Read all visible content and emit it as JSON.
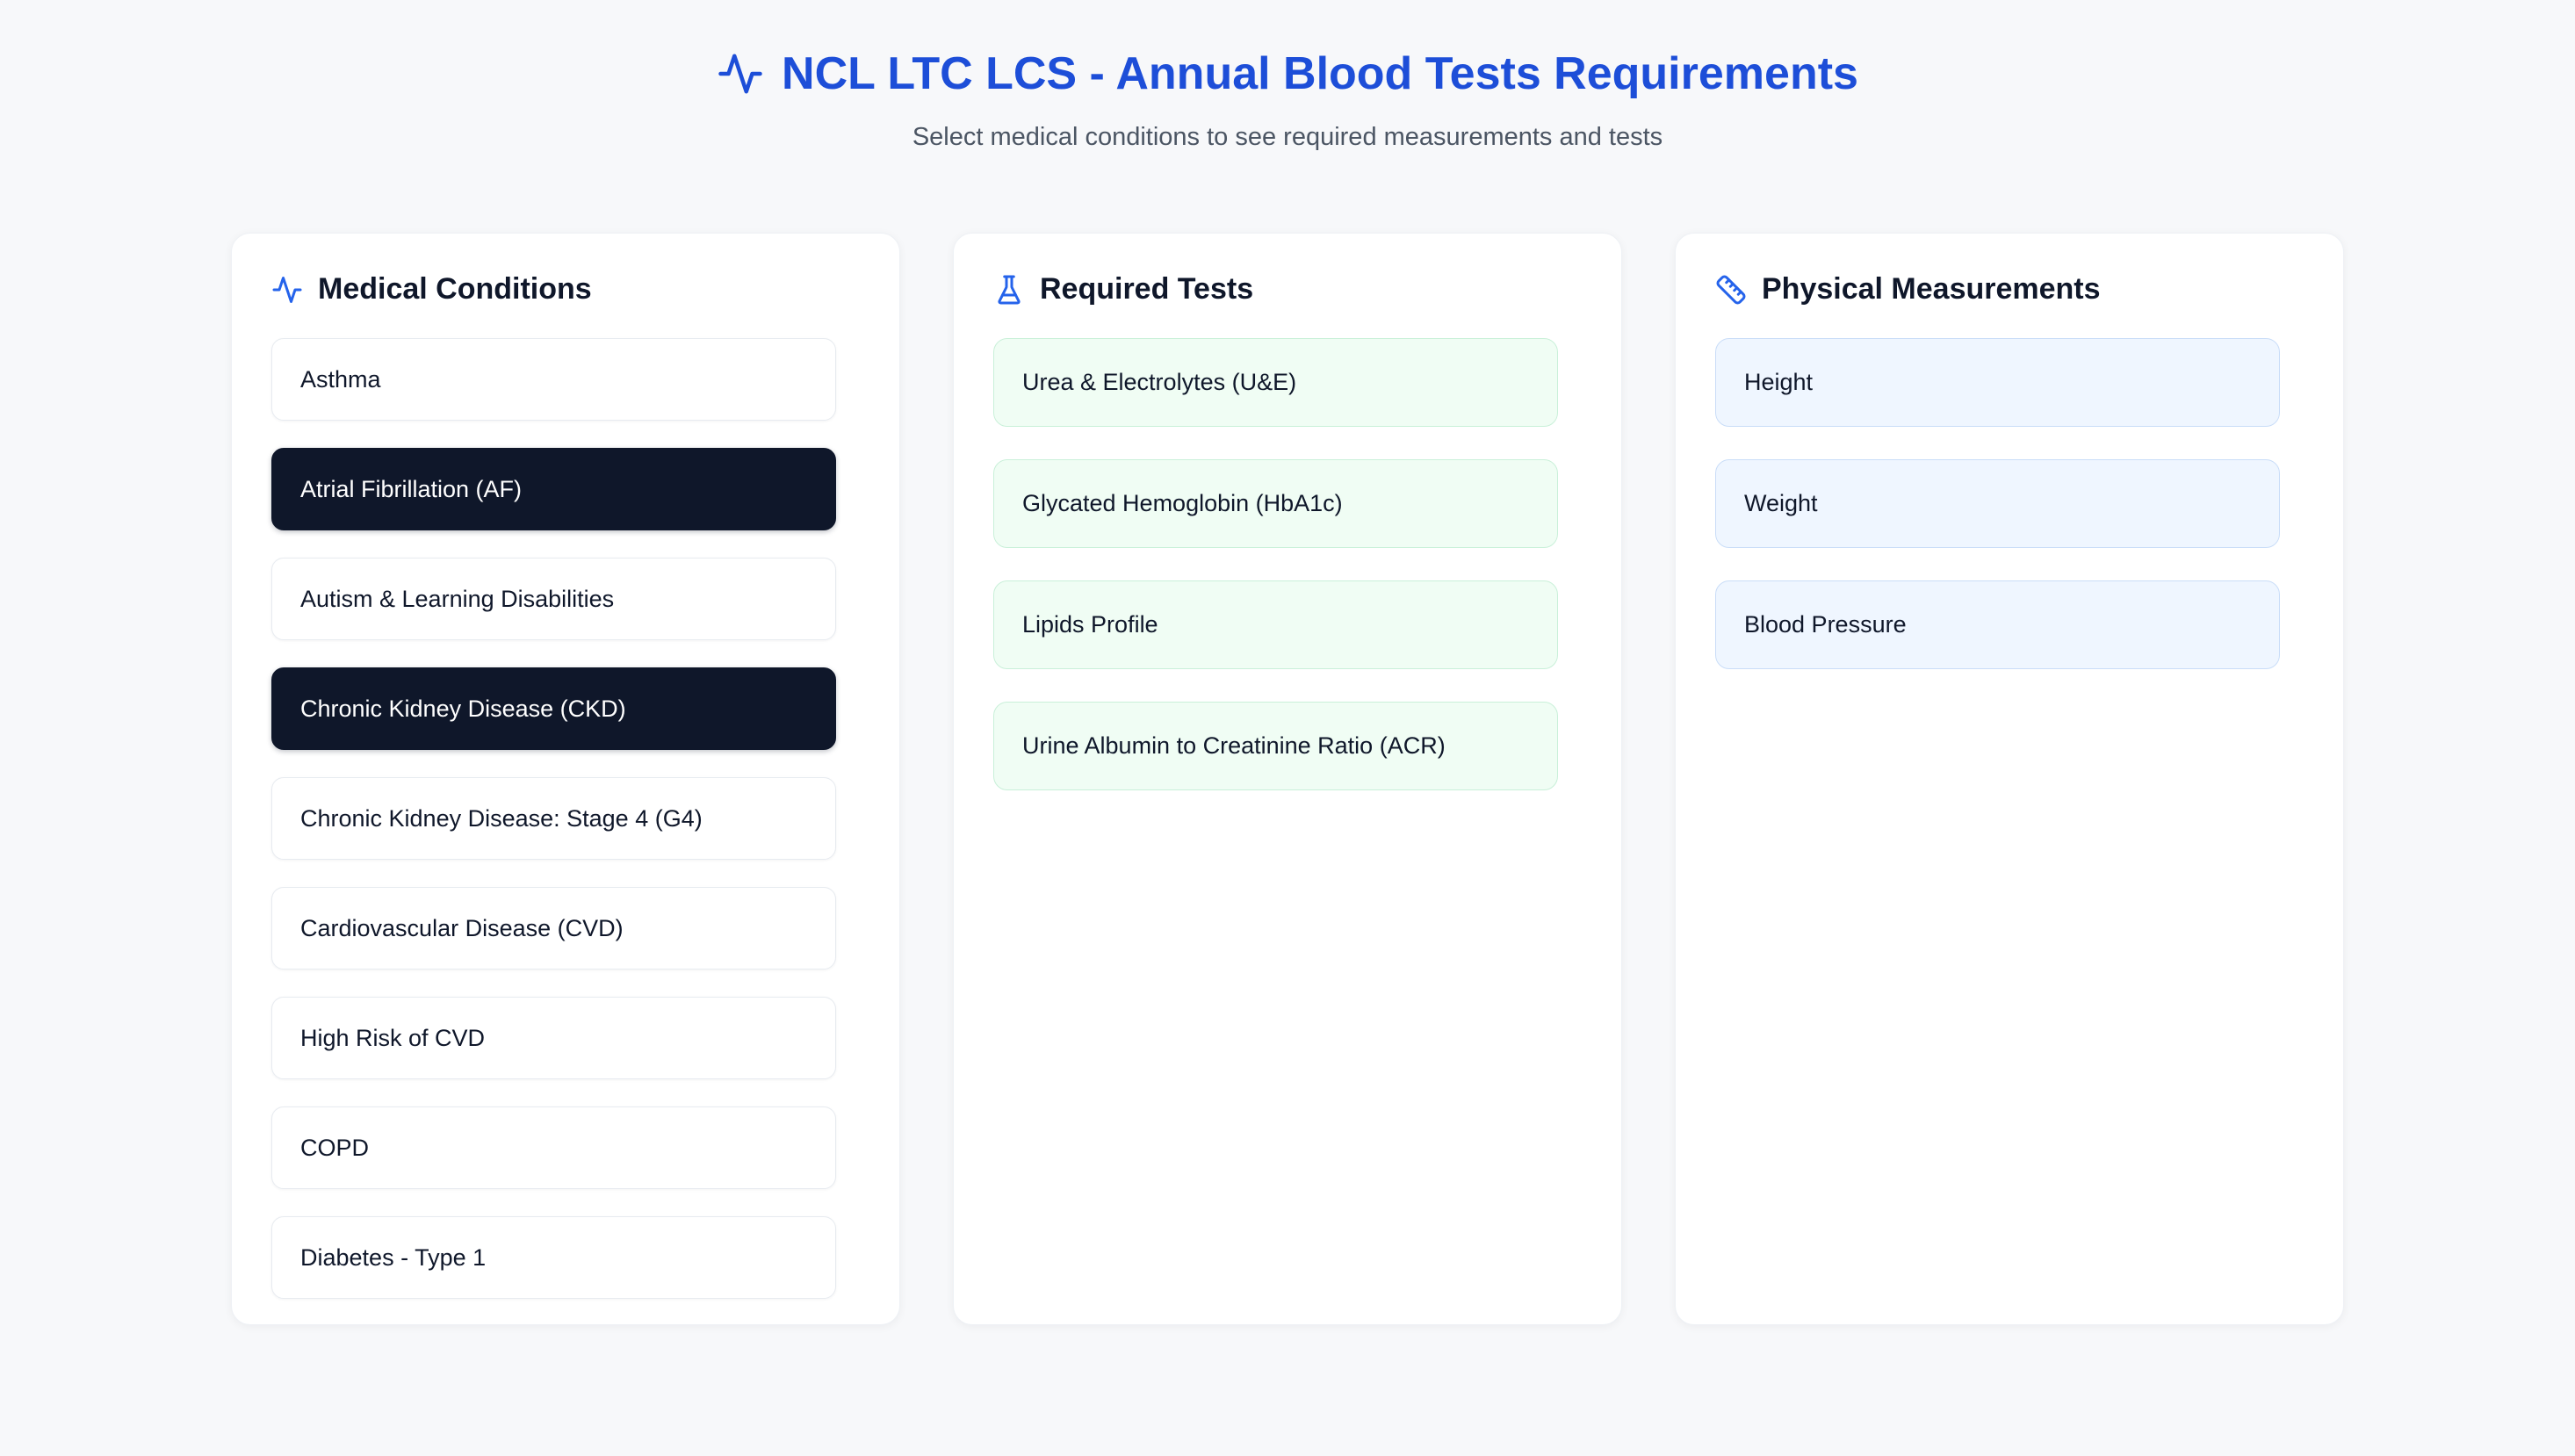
{
  "page": {
    "title": "NCL LTC LCS - Annual Blood Tests Requirements",
    "subtitle": "Select medical conditions to see required measurements and tests"
  },
  "colors": {
    "title_blue": "#1d4ed8",
    "icon_blue": "#2563eb",
    "selected_item_bg": "#0f172a",
    "selected_item_text": "#ffffff",
    "test_item_bg": "#f0fdf4",
    "test_item_border": "#c9f0d9",
    "measurement_item_bg": "#eff6ff",
    "measurement_item_border": "#c9ddf8",
    "page_bg": "#f7f8fa",
    "panel_bg": "#ffffff",
    "text_dark": "#0f172a"
  },
  "conditions_panel": {
    "title": "Medical Conditions",
    "icon": "activity-icon",
    "items": [
      {
        "label": "Asthma",
        "selected": false
      },
      {
        "label": "Atrial Fibrillation (AF)",
        "selected": true
      },
      {
        "label": "Autism & Learning Disabilities",
        "selected": false
      },
      {
        "label": "Chronic Kidney Disease (CKD)",
        "selected": true
      },
      {
        "label": "Chronic Kidney Disease: Stage 4 (G4)",
        "selected": false
      },
      {
        "label": "Cardiovascular Disease (CVD)",
        "selected": false
      },
      {
        "label": "High Risk of CVD",
        "selected": false
      },
      {
        "label": "COPD",
        "selected": false
      },
      {
        "label": "Diabetes - Type 1",
        "selected": false
      }
    ]
  },
  "tests_panel": {
    "title": "Required Tests",
    "icon": "flask-icon",
    "items": [
      {
        "label": "Urea & Electrolytes (U&E)"
      },
      {
        "label": "Glycated Hemoglobin (HbA1c)"
      },
      {
        "label": "Lipids Profile"
      },
      {
        "label": "Urine Albumin to Creatinine Ratio (ACR)"
      }
    ]
  },
  "measurements_panel": {
    "title": "Physical Measurements",
    "icon": "ruler-icon",
    "items": [
      {
        "label": "Height"
      },
      {
        "label": "Weight"
      },
      {
        "label": "Blood Pressure"
      }
    ]
  }
}
